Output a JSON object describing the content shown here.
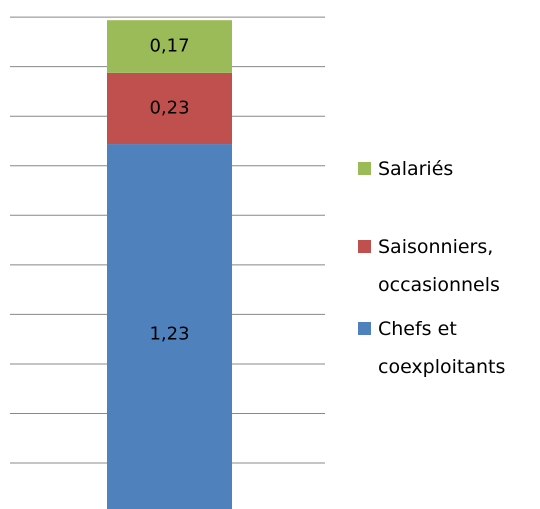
{
  "chart_data": {
    "type": "stacked_bar",
    "categories": [
      null
    ],
    "series": [
      {
        "name": "Chefs et coexploitants",
        "color": "#4f81bd",
        "values": [
          1.23
        ],
        "value_labels": [
          "1,23"
        ]
      },
      {
        "name": "Saisonniers, occasionnels",
        "color": "#c0504d",
        "values": [
          0.23
        ],
        "value_labels": [
          "0,23"
        ]
      },
      {
        "name": "Salariés",
        "color": "#9bbb59",
        "values": [
          0.17
        ],
        "value_labels": [
          "0,17"
        ]
      }
    ],
    "ylim": [
      0,
      1.65
    ],
    "yticks": [
      0.2,
      0.36,
      0.52,
      0.68,
      0.84,
      1.0,
      1.16,
      1.32,
      1.48,
      1.64
    ],
    "grid": true,
    "legend": "right"
  }
}
